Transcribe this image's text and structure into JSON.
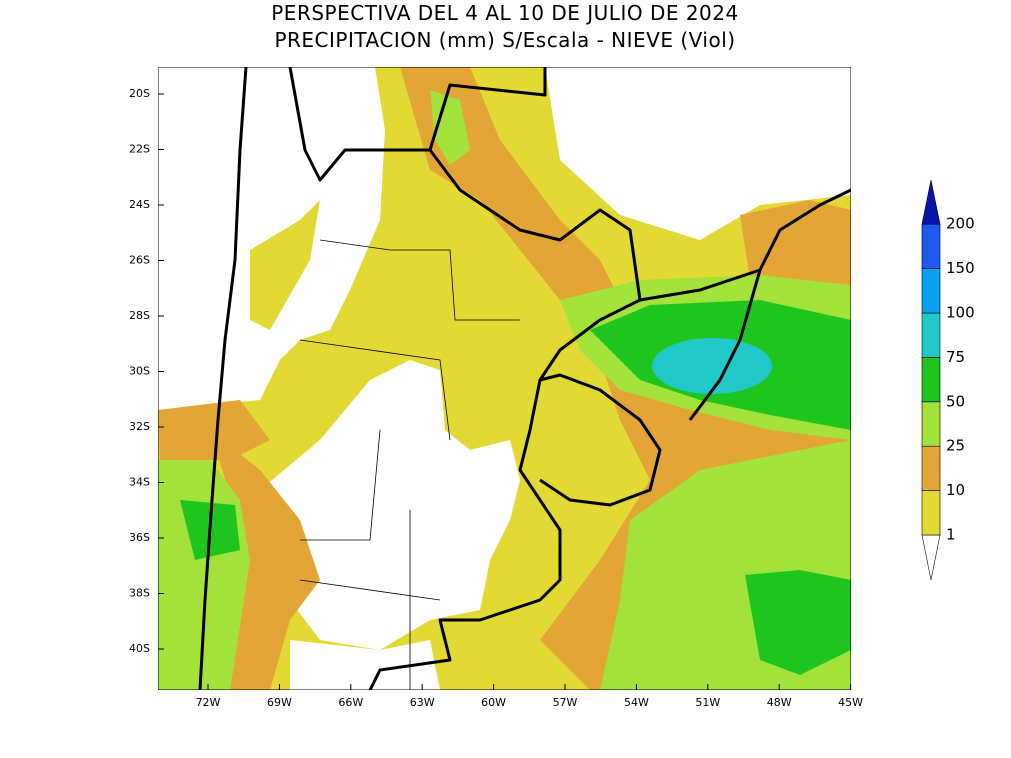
{
  "title": [
    "PERSPECTIVA DEL 4 AL 10 DE JULIO DE 2024",
    "PRECIPITACION (mm) S/Escala - NIEVE (Viol)"
  ],
  "map": {
    "lat_labels": [
      "20S",
      "22S",
      "24S",
      "26S",
      "28S",
      "30S",
      "32S",
      "34S",
      "36S",
      "38S",
      "40S"
    ],
    "lon_labels": [
      "72W",
      "69W",
      "66W",
      "63W",
      "60W",
      "57W",
      "54W",
      "51W",
      "48W",
      "45W"
    ]
  },
  "legend": {
    "levels": [
      1,
      10,
      25,
      50,
      75,
      100,
      150,
      200
    ],
    "colors": [
      "#ffffff",
      "#e2d935",
      "#e3a536",
      "#a2e23a",
      "#1fc51f",
      "#20c8c8",
      "#0aa2f0",
      "#1e5af0",
      "#0a14a8"
    ]
  }
}
